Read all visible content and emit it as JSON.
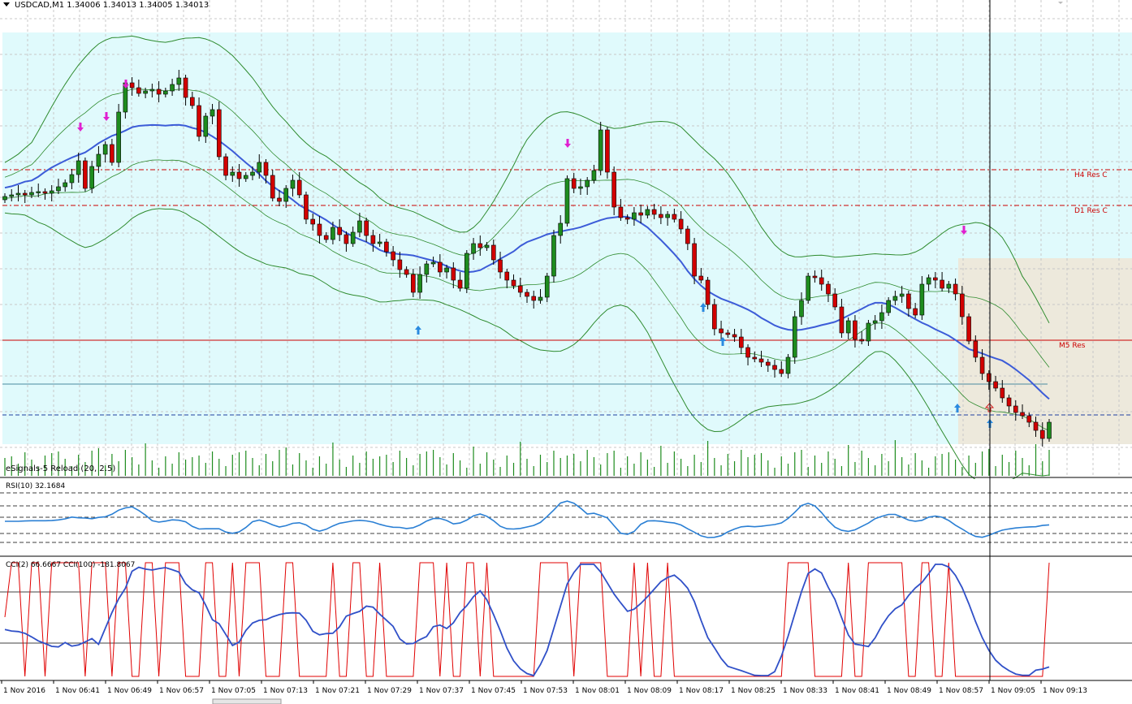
{
  "header": {
    "symbol_line": "USDCAD,M1  1.34006 1.34013 1.34005 1.34013"
  },
  "levels": [
    {
      "name": "H4 Res C",
      "label": "H4 Res C",
      "color": "#cc0000",
      "style": "dashdot"
    },
    {
      "name": "D1 Res C",
      "label": "D1 Res C",
      "color": "#cc0000",
      "style": "dashdot"
    },
    {
      "name": "M5 Res",
      "label": "M5 Res",
      "color": "#cc0000",
      "style": "solid"
    }
  ],
  "indicator_labels": {
    "volume": "eSignals-5 Reload (20, 2.5)",
    "rsi": "RSI(10) 32.1684",
    "cci": "CCI(2) 66.6667  CCI(100) -181.8067"
  },
  "time_axis": [
    "1 Nov 2016",
    "1 Nov 06:41",
    "1 Nov 06:49",
    "1 Nov 06:57",
    "1 Nov 07:05",
    "1 Nov 07:13",
    "1 Nov 07:21",
    "1 Nov 07:29",
    "1 Nov 07:37",
    "1 Nov 07:45",
    "1 Nov 07:53",
    "1 Nov 08:01",
    "1 Nov 08:09",
    "1 Nov 08:17",
    "1 Nov 08:25",
    "1 Nov 08:33",
    "1 Nov 08:41",
    "1 Nov 08:49",
    "1 Nov 08:57",
    "1 Nov 09:05",
    "1 Nov 09:13"
  ],
  "colors": {
    "bull": "#1e8c1e",
    "bear": "#d20000",
    "background_band": "#e0fafc",
    "ma": "#3c5cd8",
    "bands": "#2e8b2e",
    "rsi": "#2a7fd4",
    "cci_fast": "#e00000",
    "cci_slow": "#3050c8",
    "up_arrow": "#2a8ae0",
    "down_arrow": "#e020d0"
  },
  "icons": {
    "up_signal": "up-arrow-icon",
    "down_signal": "down-arrow-icon",
    "menu": "triangle-down-icon"
  }
}
